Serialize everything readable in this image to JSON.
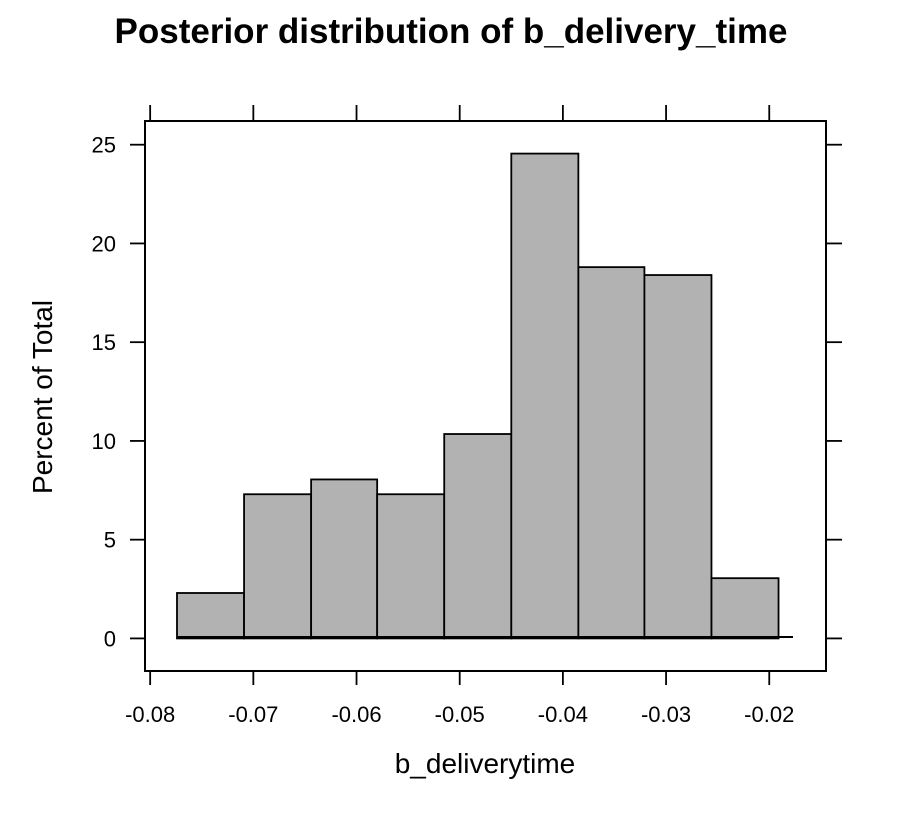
{
  "chart_data": {
    "type": "bar",
    "title": "Posterior distribution of b_delivery_time",
    "xlabel": "b_deliverytime",
    "ylabel": "Percent of Total",
    "xlim": [
      -0.0805,
      -0.0145
    ],
    "ylim": [
      -1.65,
      26.2
    ],
    "x_ticks": [
      "-0.08",
      "-0.07",
      "-0.06",
      "-0.05",
      "-0.04",
      "-0.03",
      "-0.02"
    ],
    "x_tick_values": [
      -0.08,
      -0.07,
      -0.06,
      -0.05,
      -0.04,
      -0.03,
      -0.02
    ],
    "y_ticks": [
      "0",
      "5",
      "10",
      "15",
      "20",
      "25"
    ],
    "y_tick_values": [
      0,
      5,
      10,
      15,
      20,
      25
    ],
    "bins": [
      {
        "x0": -0.0774,
        "x1": -0.0709,
        "value": 2.3
      },
      {
        "x0": -0.0709,
        "x1": -0.0644,
        "value": 7.3
      },
      {
        "x0": -0.0644,
        "x1": -0.058,
        "value": 8.05
      },
      {
        "x0": -0.058,
        "x1": -0.0515,
        "value": 7.3
      },
      {
        "x0": -0.0515,
        "x1": -0.045,
        "value": 10.35
      },
      {
        "x0": -0.045,
        "x1": -0.0385,
        "value": 24.55
      },
      {
        "x0": -0.0385,
        "x1": -0.0321,
        "value": 18.8
      },
      {
        "x0": -0.0321,
        "x1": -0.0256,
        "value": 18.4
      },
      {
        "x0": -0.0256,
        "x1": -0.0191,
        "value": 3.05
      }
    ],
    "bar_fill": "#b2b2b2",
    "bar_stroke": "#000000",
    "grid": false
  }
}
